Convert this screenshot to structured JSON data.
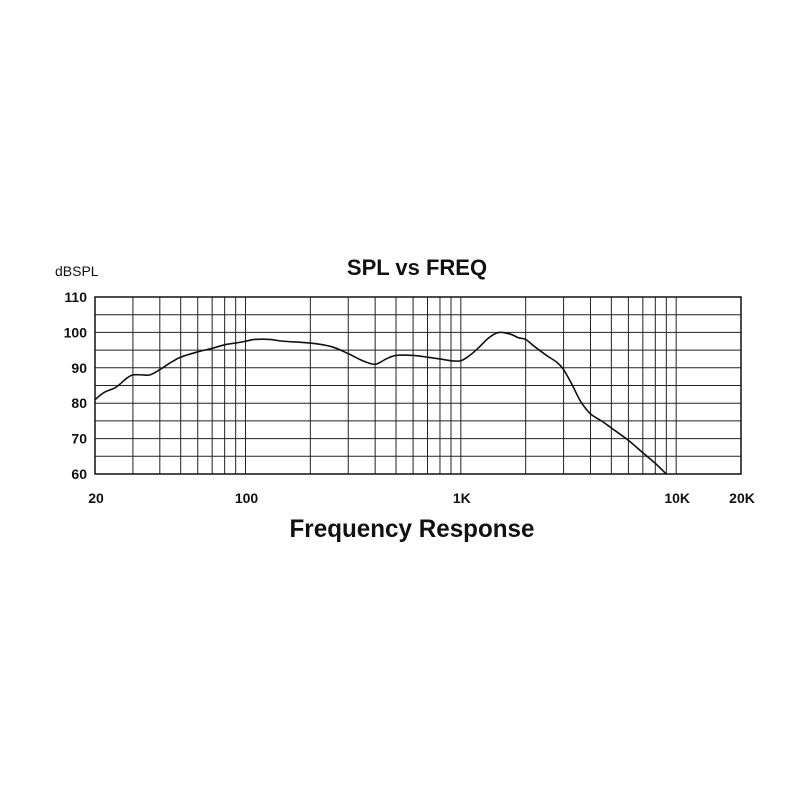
{
  "chart_data": {
    "type": "line",
    "title": "SPL vs FREQ",
    "xlabel": "Frequency Response",
    "ylabel": "dBSPL",
    "x_scale": "log",
    "xlim": [
      20,
      20000
    ],
    "ylim": [
      60,
      110
    ],
    "x_tick_labels": [
      {
        "value": 20,
        "label": "20"
      },
      {
        "value": 100,
        "label": "100"
      },
      {
        "value": 1000,
        "label": "1K"
      },
      {
        "value": 10000,
        "label": "10K"
      },
      {
        "value": 20000,
        "label": "20K"
      }
    ],
    "y_tick_labels": [
      {
        "value": 60,
        "label": "60"
      },
      {
        "value": 70,
        "label": "70"
      },
      {
        "value": 80,
        "label": "80"
      },
      {
        "value": 90,
        "label": "90"
      },
      {
        "value": 100,
        "label": "100"
      },
      {
        "value": 110,
        "label": "110"
      }
    ],
    "x_gridlines": [
      20,
      30,
      40,
      50,
      60,
      70,
      80,
      90,
      100,
      200,
      300,
      400,
      500,
      600,
      700,
      800,
      900,
      1000,
      2000,
      3000,
      4000,
      5000,
      6000,
      7000,
      8000,
      9000,
      10000,
      20000
    ],
    "y_gridlines": [
      60,
      65,
      70,
      75,
      80,
      85,
      90,
      95,
      100,
      105,
      110
    ],
    "grid": true,
    "legend": "none",
    "series": [
      {
        "x": [
          20,
          22,
          25,
          28,
          30,
          33,
          36,
          40,
          45,
          50,
          60,
          70,
          80,
          90,
          100,
          110,
          130,
          150,
          200,
          250,
          300,
          350,
          400,
          450,
          500,
          600,
          700,
          800,
          900,
          1000,
          1100,
          1200,
          1350,
          1500,
          1700,
          1850,
          2000,
          2200,
          2500,
          2800,
          3000,
          3300,
          3600,
          4000,
          4500,
          5000,
          6000,
          7000,
          8000,
          9000
        ],
        "y": [
          81,
          83,
          84.5,
          87,
          88,
          88,
          88,
          89.5,
          91.5,
          93,
          94.5,
          95.5,
          96.5,
          97,
          97.5,
          98,
          98,
          97.5,
          97,
          96,
          94,
          92,
          91,
          92.5,
          93.5,
          93.5,
          93,
          92.5,
          92,
          92,
          93.5,
          95.5,
          98.5,
          100,
          99.5,
          98.5,
          98,
          96,
          93.5,
          91.5,
          89.5,
          85,
          80.5,
          77,
          75,
          73,
          69.5,
          66,
          63,
          60
        ]
      }
    ]
  }
}
